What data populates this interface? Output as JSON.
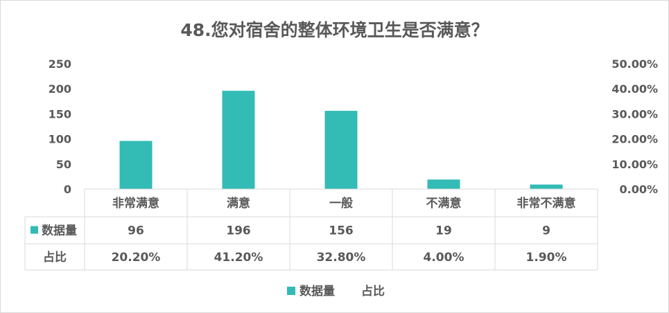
{
  "chart_data": {
    "type": "bar",
    "title": "48.您对宿舍的整体环境卫生是否满意？",
    "categories": [
      "非常满意",
      "满意",
      "一般",
      "不满意",
      "非常不满意"
    ],
    "series": [
      {
        "name": "数据量",
        "values": [
          96,
          196,
          156,
          19,
          9
        ],
        "labels": [
          "96",
          "196",
          "156",
          "19",
          "9"
        ],
        "axis": "left",
        "color": "#33bbb5"
      },
      {
        "name": "占比",
        "values": [
          20.2,
          41.2,
          32.8,
          4.0,
          1.9
        ],
        "labels": [
          "20.20%",
          "41.20%",
          "32.80%",
          "4.00%",
          "1.90%"
        ],
        "axis": "right"
      }
    ],
    "ylim": [
      0,
      250
    ],
    "y_ticks": [
      "0",
      "50",
      "100",
      "150",
      "200",
      "250"
    ],
    "y2lim": [
      0,
      50
    ],
    "y2_ticks": [
      "0.00%",
      "10.00%",
      "20.00%",
      "30.00%",
      "40.00%",
      "50.00%"
    ],
    "grid": false,
    "data_table": true,
    "legend_position": "bottom"
  }
}
